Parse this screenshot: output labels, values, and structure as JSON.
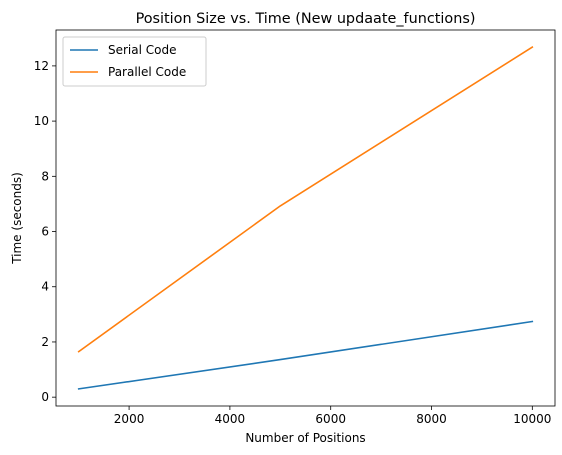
{
  "chart_data": {
    "type": "line",
    "title": "Position Size vs. Time (New updaate_functions)",
    "xlabel": "Number of Positions",
    "ylabel": "Time (seconds)",
    "xlim": [
      550,
      10450
    ],
    "ylim": [
      -0.32,
      13.3
    ],
    "xticks": [
      2000,
      4000,
      6000,
      8000,
      10000
    ],
    "yticks": [
      0,
      2,
      4,
      6,
      8,
      10,
      12
    ],
    "grid": false,
    "legend_position": "top-left",
    "x": [
      1000,
      5000,
      10000
    ],
    "series": [
      {
        "name": "Serial Code",
        "color": "#1f77b4",
        "values": [
          0.3,
          1.36,
          2.74
        ]
      },
      {
        "name": "Parallel Code",
        "color": "#ff7f0e",
        "values": [
          1.65,
          6.93,
          12.68
        ]
      }
    ]
  }
}
